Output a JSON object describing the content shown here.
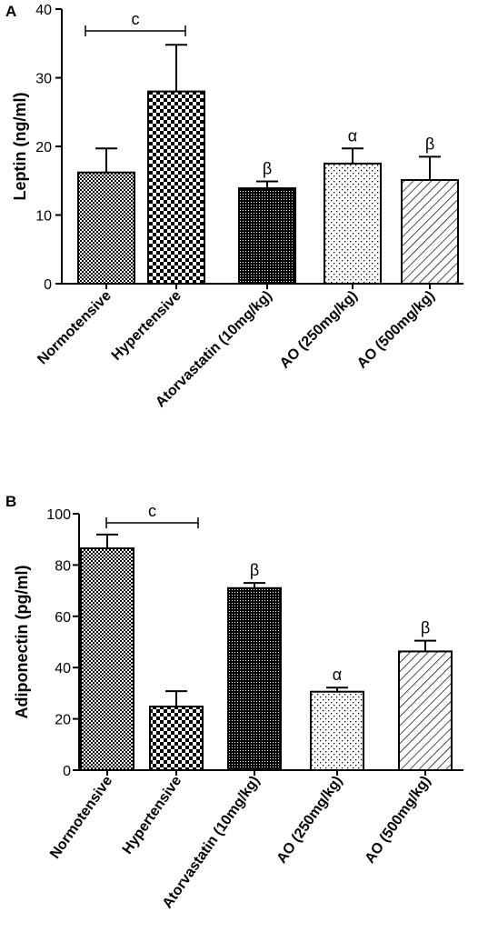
{
  "chart_data": [
    {
      "panel": "A",
      "type": "bar",
      "title": "",
      "xlabel": "",
      "ylabel": "Leptin (ng/ml)",
      "ylim": [
        0,
        40
      ],
      "yticks": [
        0,
        10,
        20,
        30,
        40
      ],
      "grid": false,
      "legend": "none",
      "categories": [
        "Normotensive",
        "Hypertensive",
        "Atorvastatin (10mg/kg)",
        "AO (250mg/kg)",
        "AO (500mg/kg)"
      ],
      "values": [
        16.2,
        28.0,
        13.9,
        17.5,
        15.1
      ],
      "error": [
        3.5,
        6.8,
        1.0,
        2.2,
        3.4
      ],
      "annotations": [
        "",
        "",
        "β",
        "α",
        "β"
      ],
      "bracket": {
        "from": 0,
        "to": 1,
        "label": "c"
      }
    },
    {
      "panel": "B",
      "type": "bar",
      "title": "",
      "xlabel": "",
      "ylabel": "Adiponectin (pg/ml)",
      "ylim": [
        0,
        100
      ],
      "yticks": [
        0,
        20,
        40,
        60,
        80,
        100
      ],
      "grid": false,
      "legend": "none",
      "categories": [
        "Normotensive",
        "Hypertensive",
        "Atorvastatin (10mg/kg)",
        "AO (250mg/kg)",
        "AO (500mg/kg)"
      ],
      "values": [
        86.5,
        24.8,
        71.0,
        30.6,
        46.3
      ],
      "error": [
        5.4,
        6.0,
        2.0,
        1.6,
        4.2
      ],
      "annotations": [
        "",
        "",
        "β",
        "α",
        "β"
      ],
      "bracket": {
        "from": 0,
        "to": 1,
        "label": "c"
      }
    }
  ]
}
